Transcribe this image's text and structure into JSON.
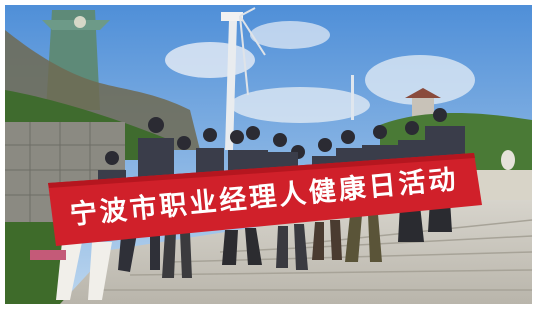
{
  "banner": {
    "text": "宁波市职业经理人健康日活动"
  }
}
